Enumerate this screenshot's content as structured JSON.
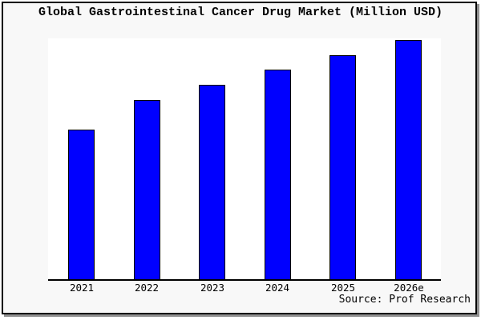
{
  "window": {
    "background_color": "#f8f8f8",
    "plot_background_color": "#ffffff",
    "border_color": "#000000",
    "shadow_color": "#909090"
  },
  "chart_data": {
    "type": "bar",
    "title": "Global Gastrointestinal Cancer Drug Market (Million USD)",
    "categories": [
      "2021",
      "2022",
      "2023",
      "2024",
      "2025",
      "2026e"
    ],
    "values_relative_pct": [
      62.8,
      75,
      81.4,
      87.7,
      93.8,
      100
    ],
    "note": "Y-axis has no ticks, labels or gridlines; values are estimated relative bar heights with tallest bar (2026e) = 100.",
    "xlabel": "",
    "ylabel": "",
    "legend": "none",
    "grid": false,
    "bar_color": "#0000ff",
    "bar_border_color": "#000000",
    "source_label": "Source: Prof Research"
  }
}
